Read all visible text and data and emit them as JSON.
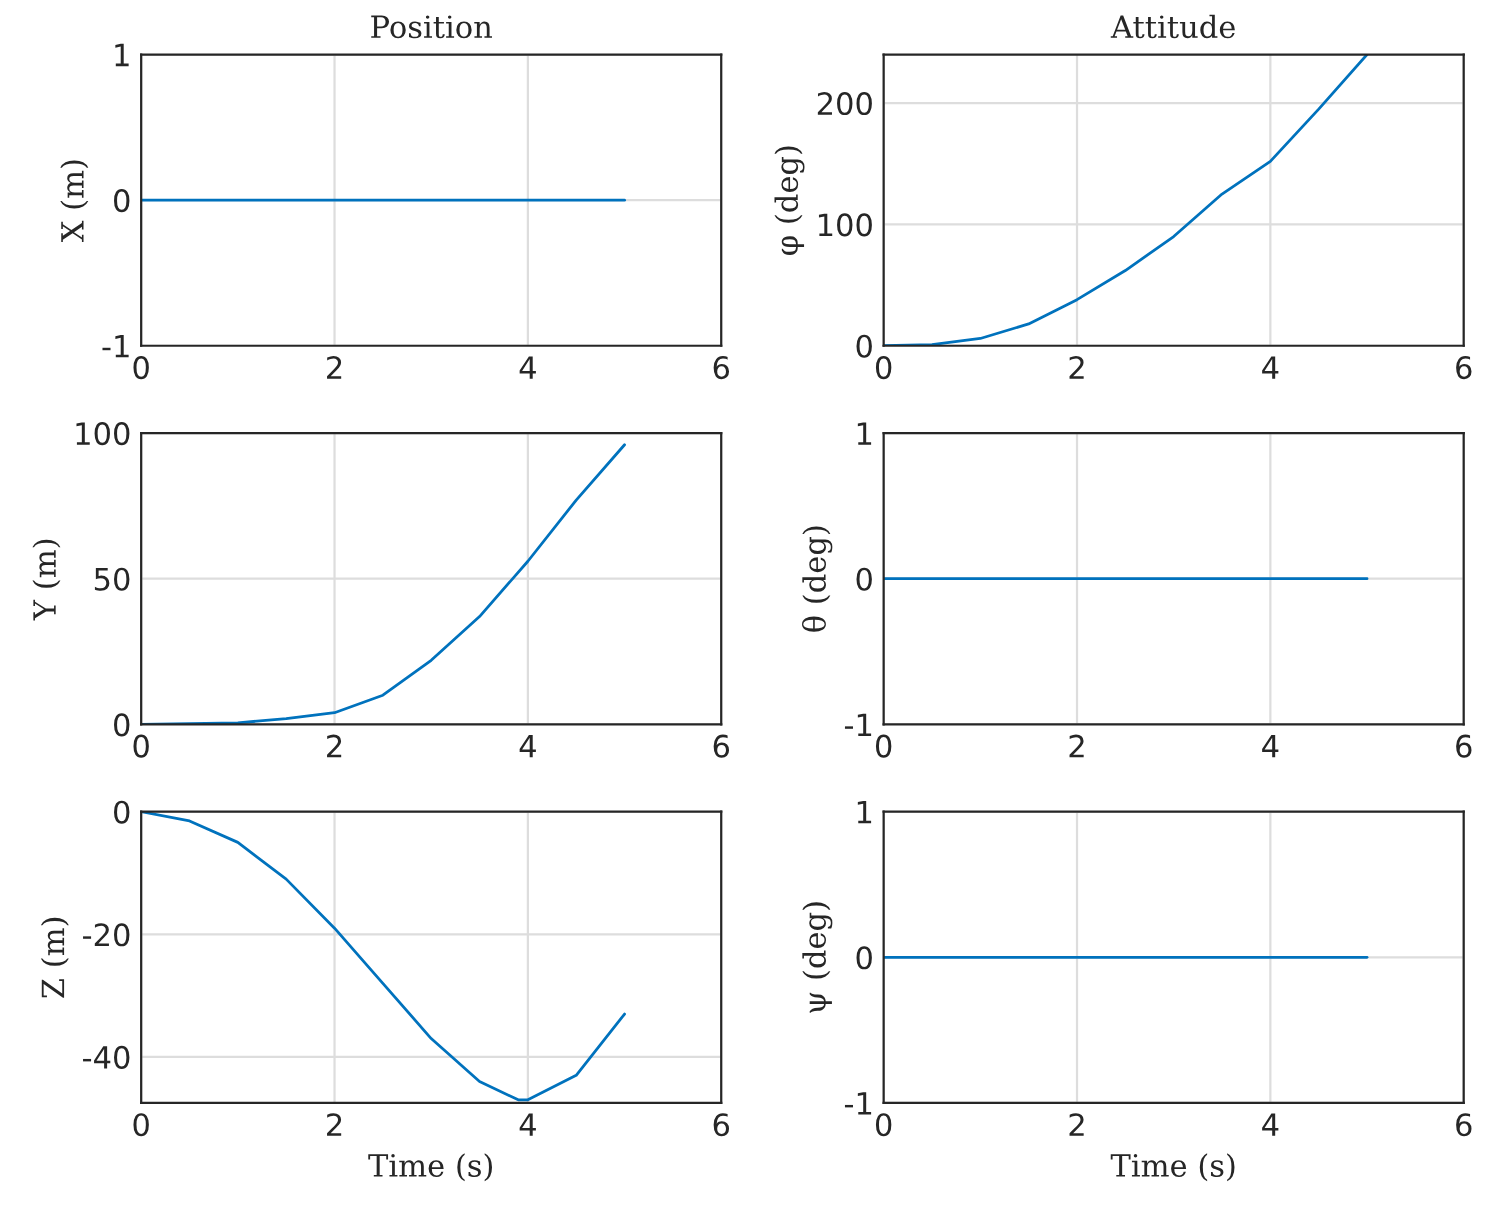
{
  "chart_data": [
    {
      "type": "line",
      "title": "Position",
      "ylabel": "X (m)",
      "x": [
        0,
        5
      ],
      "series": [
        {
          "color": "#0072bd",
          "values": [
            0,
            0
          ]
        }
      ],
      "xlim": [
        0,
        6
      ],
      "xticks": [
        0,
        2,
        4,
        6
      ],
      "ylim": [
        -1,
        1
      ],
      "yticks": [
        -1,
        0,
        1
      ],
      "grid": true
    },
    {
      "type": "line",
      "title": "Attitude",
      "ylabel": "φ (deg)",
      "x": [
        0,
        0.5,
        1,
        1.5,
        2,
        2.5,
        3,
        3.5,
        4,
        4.5,
        5
      ],
      "series": [
        {
          "color": "#0072bd",
          "values": [
            0,
            1,
            6,
            18,
            38,
            62,
            90,
            125,
            152,
            195,
            240
          ]
        }
      ],
      "xlim": [
        0,
        6
      ],
      "xticks": [
        0,
        2,
        4,
        6
      ],
      "ylim": [
        0,
        240
      ],
      "yticks": [
        0,
        100,
        200
      ],
      "grid": true
    },
    {
      "type": "line",
      "ylabel": "Y (m)",
      "x": [
        0,
        1,
        1.5,
        2,
        2.5,
        3,
        3.5,
        4,
        4.5,
        5
      ],
      "series": [
        {
          "color": "#0072bd",
          "values": [
            0,
            0.5,
            2,
            4,
            10,
            22,
            37,
            56,
            77,
            96
          ]
        }
      ],
      "xlim": [
        0,
        6
      ],
      "xticks": [
        0,
        2,
        4,
        6
      ],
      "ylim": [
        0,
        100
      ],
      "yticks": [
        0,
        50,
        100
      ],
      "grid": true
    },
    {
      "type": "line",
      "ylabel": "θ (deg)",
      "x": [
        0,
        5
      ],
      "series": [
        {
          "color": "#0072bd",
          "values": [
            0,
            0
          ]
        }
      ],
      "xlim": [
        0,
        6
      ],
      "xticks": [
        0,
        2,
        4,
        6
      ],
      "ylim": [
        -1,
        1
      ],
      "yticks": [
        -1,
        0,
        1
      ],
      "grid": true
    },
    {
      "type": "line",
      "ylabel": "Z (m)",
      "xlabel": "Time (s)",
      "x": [
        0,
        0.5,
        1,
        1.5,
        2,
        2.5,
        3,
        3.5,
        3.9,
        4,
        4.5,
        5
      ],
      "series": [
        {
          "color": "#0072bd",
          "values": [
            0,
            -1.5,
            -5,
            -11,
            -19,
            -28,
            -37,
            -44,
            -47,
            -47,
            -43,
            -33
          ]
        }
      ],
      "xlim": [
        0,
        6
      ],
      "xticks": [
        0,
        2,
        4,
        6
      ],
      "ylim": [
        -47.5,
        0
      ],
      "yticks": [
        -40,
        -20,
        0
      ],
      "grid": true
    },
    {
      "type": "line",
      "ylabel": "ψ (deg)",
      "xlabel": "Time (s)",
      "x": [
        0,
        5
      ],
      "series": [
        {
          "color": "#0072bd",
          "values": [
            0,
            0
          ]
        }
      ],
      "xlim": [
        0,
        6
      ],
      "xticks": [
        0,
        2,
        4,
        6
      ],
      "ylim": [
        -1,
        1
      ],
      "yticks": [
        -1,
        0,
        1
      ],
      "grid": true
    }
  ]
}
